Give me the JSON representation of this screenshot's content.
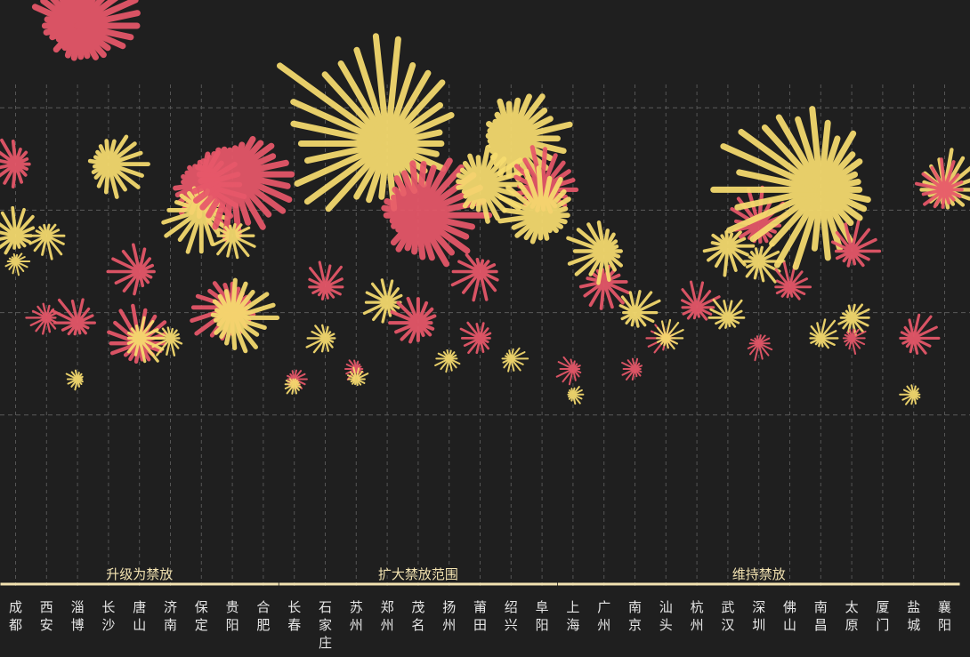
{
  "chart_data": {
    "type": "radial-burst",
    "title": "",
    "groups": [
      {
        "label": "升级为禁放",
        "cities": [
          "成都",
          "西安",
          "淄博",
          "长沙",
          "唐山",
          "济南",
          "保定",
          "贵阳",
          "合肥"
        ]
      },
      {
        "label": "扩大禁放范围",
        "cities": [
          "长春",
          "石家庄",
          "苏州",
          "郑州",
          "茂名",
          "扬州",
          "莆田",
          "绍兴",
          "阜阳"
        ]
      },
      {
        "label": "维持禁放",
        "cities": [
          "上海",
          "广州",
          "南京",
          "汕头",
          "杭州",
          "武汉",
          "深圳",
          "佛山",
          "南昌",
          "太原",
          "厦门",
          "盐城",
          "襄阳"
        ]
      }
    ],
    "cities": [
      "成都",
      "西安",
      "淄博",
      "长沙",
      "唐山",
      "济南",
      "保定",
      "贵阳",
      "合肥",
      "长春",
      "石家庄",
      "苏州",
      "郑州",
      "茂名",
      "扬州",
      "莆田",
      "绍兴",
      "阜阳",
      "上海",
      "广州",
      "南京",
      "汕头",
      "杭州",
      "武汉",
      "深圳",
      "佛山",
      "南昌",
      "太原",
      "厦门",
      "盐城",
      "襄阳"
    ],
    "series": [
      {
        "name": "series-red",
        "color": "#e8586a"
      },
      {
        "name": "series-yellow",
        "color": "#f7dc6f"
      }
    ],
    "ylim": [
      0,
      5
    ],
    "grid": true,
    "bursts": [
      {
        "city": "成都",
        "series": "series-red",
        "value": 3.45,
        "size": 34
      },
      {
        "city": "成都",
        "series": "series-yellow",
        "value": 2.75,
        "size": 34
      },
      {
        "city": "成都",
        "series": "series-yellow",
        "value": 2.5,
        "size": 16
      },
      {
        "city": "西安",
        "series": "series-yellow",
        "value": 2.75,
        "size": 26
      },
      {
        "city": "西安",
        "series": "series-red",
        "value": 1.95,
        "size": 22
      },
      {
        "city": "淄博",
        "series": "series-red",
        "value": 4.8,
        "size": 70
      },
      {
        "city": "淄博",
        "series": "series-red",
        "value": 1.9,
        "size": 30
      },
      {
        "city": "淄博",
        "series": "series-yellow",
        "value": 1.35,
        "size": 14
      },
      {
        "city": "长沙",
        "series": "series-yellow",
        "value": 3.45,
        "size": 42
      },
      {
        "city": "唐山",
        "series": "series-red",
        "value": 2.4,
        "size": 32
      },
      {
        "city": "唐山",
        "series": "series-red",
        "value": 1.7,
        "size": 40
      },
      {
        "city": "唐山",
        "series": "series-yellow",
        "value": 1.75,
        "size": 30
      },
      {
        "city": "济南",
        "series": "series-yellow",
        "value": 1.75,
        "size": 22
      },
      {
        "city": "保定",
        "series": "series-red",
        "value": 3.25,
        "size": 52
      },
      {
        "city": "保定",
        "series": "series-yellow",
        "value": 3.0,
        "size": 44
      },
      {
        "city": "贵阳",
        "series": "series-red",
        "value": 3.35,
        "size": 68
      },
      {
        "city": "贵阳",
        "series": "series-red",
        "value": 2.05,
        "size": 44
      },
      {
        "city": "贵阳",
        "series": "series-yellow",
        "value": 2.75,
        "size": 30
      },
      {
        "city": "贵阳",
        "series": "series-yellow",
        "value": 1.95,
        "size": 46
      },
      {
        "city": "长春",
        "series": "series-red",
        "value": 1.35,
        "size": 16
      },
      {
        "city": "长春",
        "series": "series-yellow",
        "value": 1.3,
        "size": 12
      },
      {
        "city": "石家庄",
        "series": "series-red",
        "value": 2.25,
        "size": 28
      },
      {
        "city": "石家庄",
        "series": "series-yellow",
        "value": 1.75,
        "size": 22
      },
      {
        "city": "苏州",
        "series": "series-red",
        "value": 1.45,
        "size": 14
      },
      {
        "city": "苏州",
        "series": "series-yellow",
        "value": 1.35,
        "size": 14
      },
      {
        "city": "郑州",
        "series": "series-yellow",
        "value": 3.65,
        "size": 130
      },
      {
        "city": "郑州",
        "series": "series-yellow",
        "value": 2.1,
        "size": 30
      },
      {
        "city": "茂名",
        "series": "series-red",
        "value": 2.95,
        "size": 72
      },
      {
        "city": "茂名",
        "series": "series-red",
        "value": 1.9,
        "size": 36
      },
      {
        "city": "扬州",
        "series": "series-yellow",
        "value": 1.55,
        "size": 18
      },
      {
        "city": "莆田",
        "series": "series-red",
        "value": 1.75,
        "size": 24
      },
      {
        "city": "莆田",
        "series": "series-red",
        "value": 2.4,
        "size": 32
      },
      {
        "city": "莆田",
        "series": "series-yellow",
        "value": 3.25,
        "size": 50
      },
      {
        "city": "绍兴",
        "series": "series-yellow",
        "value": 3.7,
        "size": 60
      },
      {
        "city": "绍兴",
        "series": "series-yellow",
        "value": 1.55,
        "size": 18
      },
      {
        "city": "阜阳",
        "series": "series-red",
        "value": 3.2,
        "size": 46
      },
      {
        "city": "阜阳",
        "series": "series-yellow",
        "value": 2.95,
        "size": 50
      },
      {
        "city": "上海",
        "series": "series-red",
        "value": 1.45,
        "size": 18
      },
      {
        "city": "上海",
        "series": "series-yellow",
        "value": 1.2,
        "size": 12
      },
      {
        "city": "广州",
        "series": "series-red",
        "value": 2.3,
        "size": 34
      },
      {
        "city": "广州",
        "series": "series-yellow",
        "value": 2.6,
        "size": 40
      },
      {
        "city": "南京",
        "series": "series-yellow",
        "value": 2.0,
        "size": 30
      },
      {
        "city": "南京",
        "series": "series-red",
        "value": 1.45,
        "size": 16
      },
      {
        "city": "汕头",
        "series": "series-red",
        "value": 1.75,
        "size": 20
      },
      {
        "city": "汕头",
        "series": "series-yellow",
        "value": 1.75,
        "size": 20
      },
      {
        "city": "杭州",
        "series": "series-red",
        "value": 2.05,
        "size": 28
      },
      {
        "city": "武汉",
        "series": "series-yellow",
        "value": 2.65,
        "size": 34
      },
      {
        "city": "武汉",
        "series": "series-yellow",
        "value": 1.95,
        "size": 24
      },
      {
        "city": "深圳",
        "series": "series-red",
        "value": 2.85,
        "size": 38
      },
      {
        "city": "深圳",
        "series": "series-red",
        "value": 1.7,
        "size": 18
      },
      {
        "city": "深圳",
        "series": "series-yellow",
        "value": 2.5,
        "size": 30
      },
      {
        "city": "佛山",
        "series": "series-red",
        "value": 2.25,
        "size": 26
      },
      {
        "city": "南昌",
        "series": "series-yellow",
        "value": 3.2,
        "size": 108
      },
      {
        "city": "南昌",
        "series": "series-yellow",
        "value": 1.75,
        "size": 22
      },
      {
        "city": "太原",
        "series": "series-yellow",
        "value": 1.95,
        "size": 24
      },
      {
        "city": "太原",
        "series": "series-red",
        "value": 2.6,
        "size": 32
      },
      {
        "city": "太原",
        "series": "series-red",
        "value": 1.75,
        "size": 18
      },
      {
        "city": "盐城",
        "series": "series-red",
        "value": 1.75,
        "size": 28
      },
      {
        "city": "盐城",
        "series": "series-yellow",
        "value": 1.2,
        "size": 14
      },
      {
        "city": "襄阳",
        "series": "series-yellow",
        "value": 3.2,
        "size": 40
      },
      {
        "city": "襄阳",
        "series": "series-red",
        "value": 3.2,
        "size": 34
      }
    ]
  }
}
